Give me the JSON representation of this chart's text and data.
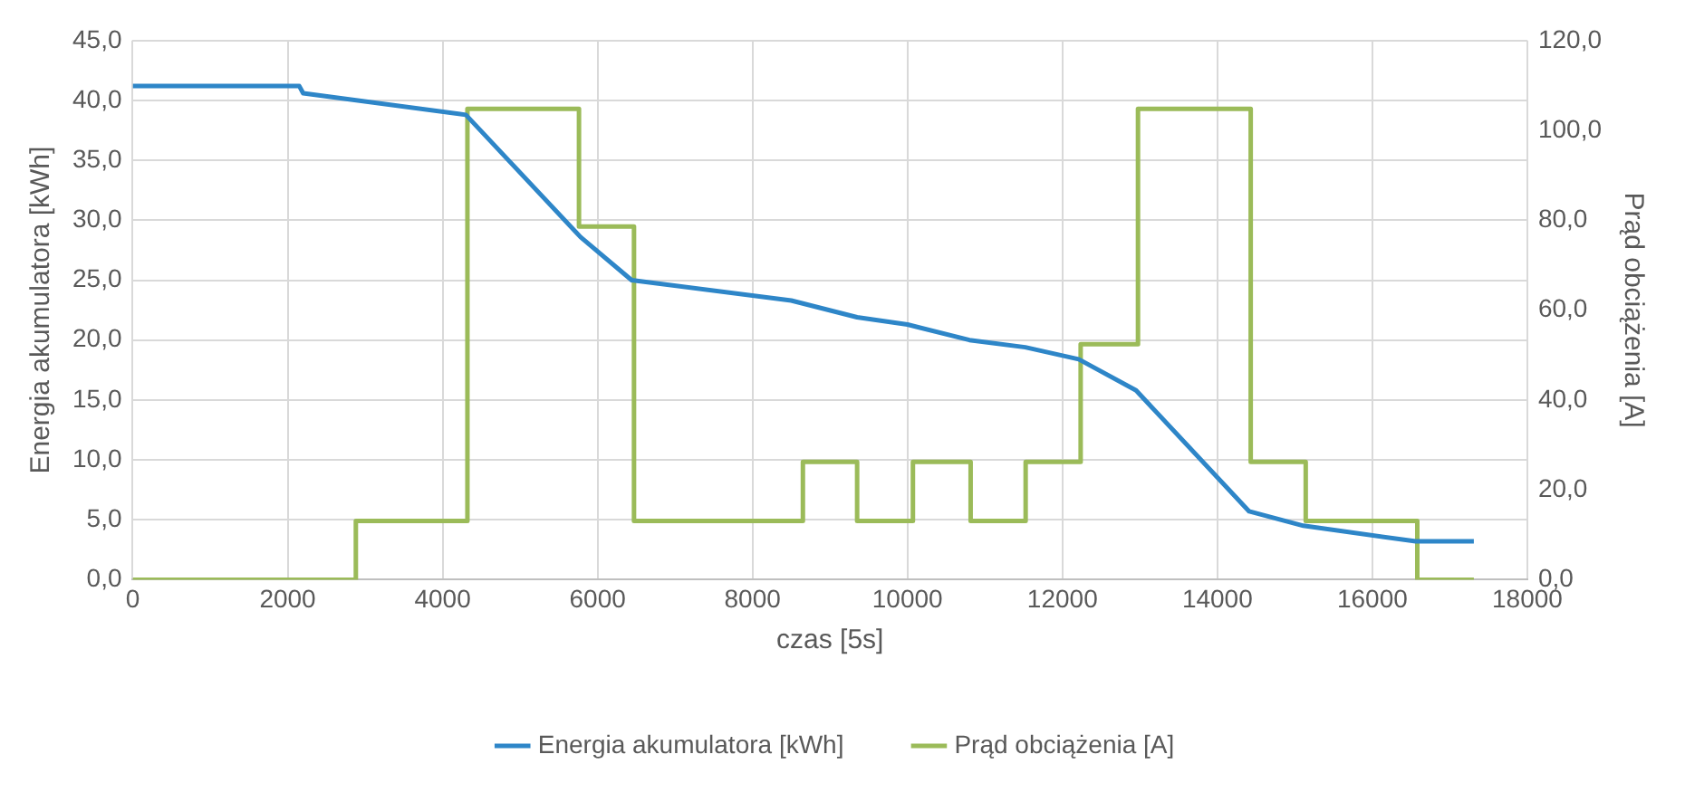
{
  "chart_data": {
    "type": "line",
    "xlabel": "czas [5s]",
    "ylabel": "Energia akumulatora [kWh]",
    "y2label": "Prąd obciążenia [A]",
    "xlim": [
      0,
      18000
    ],
    "xticks": [
      0,
      2000,
      4000,
      6000,
      8000,
      10000,
      12000,
      14000,
      16000,
      18000
    ],
    "ylim": [
      0,
      45
    ],
    "yticks": [
      {
        "value": 0,
        "label": "0,0"
      },
      {
        "value": 5,
        "label": "5,0"
      },
      {
        "value": 10,
        "label": "10,0"
      },
      {
        "value": 15,
        "label": "15,0"
      },
      {
        "value": 20,
        "label": "20,0"
      },
      {
        "value": 25,
        "label": "25,0"
      },
      {
        "value": 30,
        "label": "30,0"
      },
      {
        "value": 35,
        "label": "35,0"
      },
      {
        "value": 40,
        "label": "40,0"
      },
      {
        "value": 45,
        "label": "45,0"
      }
    ],
    "y2lim": [
      0,
      120
    ],
    "y2ticks": [
      {
        "value": 0,
        "label": "0,0"
      },
      {
        "value": 20,
        "label": "20,0"
      },
      {
        "value": 40,
        "label": "40,0"
      },
      {
        "value": 60,
        "label": "60,0"
      },
      {
        "value": 80,
        "label": "80,0"
      },
      {
        "value": 100,
        "label": "100,0"
      },
      {
        "value": 120,
        "label": "120,0"
      }
    ],
    "grid": true,
    "legend": "bottom",
    "marker": "none",
    "series": [
      {
        "name": "Energia akumulatora [kWh]",
        "color": "#2e86c8",
        "type": "line",
        "x": [
          0,
          2150,
          2200,
          4300,
          5780,
          6440,
          8500,
          9350,
          10000,
          10800,
          11520,
          12210,
          12950,
          14410,
          15110,
          16560,
          17310
        ],
        "values": [
          41.2,
          41.2,
          40.6,
          38.8,
          28.6,
          25.0,
          23.3,
          21.9,
          21.3,
          20.0,
          19.4,
          18.4,
          15.8,
          5.7,
          4.5,
          3.2,
          3.2
        ]
      },
      {
        "name": "Prąd obciążenia [A]",
        "color": "#9bbb59",
        "type": "step",
        "axis": "y2",
        "x": [
          0,
          2880,
          4320,
          5760,
          6470,
          8650,
          9350,
          10070,
          10815,
          11525,
          12235,
          12975,
          14430,
          15140,
          16580,
          17310
        ],
        "values": [
          0,
          13.1,
          104.8,
          78.6,
          13.1,
          26.2,
          13.1,
          26.2,
          13.1,
          26.2,
          52.4,
          104.8,
          26.2,
          13.1,
          0,
          0
        ]
      }
    ]
  }
}
